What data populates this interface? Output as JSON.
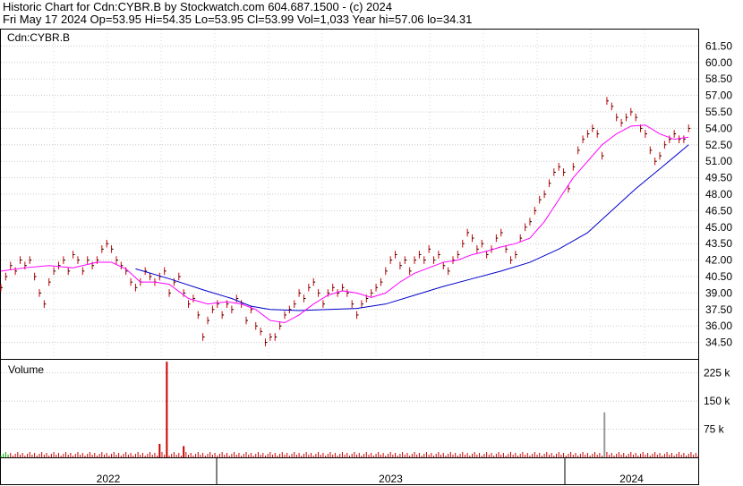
{
  "header": {
    "line1": "Historic Chart for Cdn:CYBR.B by Stockwatch.com 604.687.1500 - (c) 2024",
    "line2": "Fri May 17 2024   Op=53.95   Hi=54.35   Lo=53.95   Cl=53.99   Vol=1,033   Year hi=57.06   lo=34.31"
  },
  "colors": {
    "ma_short": "#ff00ff",
    "ma_long": "#0000cc",
    "price_ticks": "#cc0000",
    "volume_bar": "#cc0000",
    "volume_grey": "#999999",
    "volume_green": "#00aa00"
  },
  "chart_data": [
    {
      "type": "line",
      "subtitle": "Cdn:CYBR.B",
      "y_axis_position": "right",
      "ylim": [
        33.0,
        63.0
      ],
      "yticks": [
        "61.50",
        "60.00",
        "58.50",
        "57.00",
        "55.50",
        "54.00",
        "52.50",
        "51.00",
        "49.50",
        "48.00",
        "46.50",
        "45.00",
        "43.50",
        "42.00",
        "40.50",
        "39.00",
        "37.50",
        "36.00",
        "34.50"
      ],
      "grid": true,
      "x_sections": [
        "2022",
        "2023",
        "2024"
      ],
      "price_points": [
        [
          0,
          39.5
        ],
        [
          2,
          40.5
        ],
        [
          4,
          41.5
        ],
        [
          6,
          41
        ],
        [
          8,
          42
        ],
        [
          10,
          41.5
        ],
        [
          12,
          42
        ],
        [
          14,
          40.5
        ],
        [
          16,
          39
        ],
        [
          18,
          38
        ],
        [
          20,
          40
        ],
        [
          22,
          41
        ],
        [
          24,
          41.5
        ],
        [
          26,
          42
        ],
        [
          28,
          41
        ],
        [
          30,
          42.5
        ],
        [
          32,
          42
        ],
        [
          34,
          41
        ],
        [
          36,
          42
        ],
        [
          38,
          41.5
        ],
        [
          40,
          42
        ],
        [
          42,
          43
        ],
        [
          44,
          43.5
        ],
        [
          46,
          43
        ],
        [
          48,
          42
        ],
        [
          50,
          41.5
        ],
        [
          52,
          41
        ],
        [
          54,
          40
        ],
        [
          56,
          39.5
        ],
        [
          58,
          40
        ],
        [
          60,
          41
        ],
        [
          62,
          40.5
        ],
        [
          64,
          40
        ],
        [
          66,
          40.5
        ],
        [
          68,
          41
        ],
        [
          70,
          39
        ],
        [
          72,
          40
        ],
        [
          74,
          40.5
        ],
        [
          76,
          39
        ],
        [
          78,
          38
        ],
        [
          80,
          38.5
        ],
        [
          82,
          37
        ],
        [
          84,
          35
        ],
        [
          86,
          36.5
        ],
        [
          88,
          37.5
        ],
        [
          90,
          38
        ],
        [
          92,
          37
        ],
        [
          94,
          38
        ],
        [
          96,
          37.5
        ],
        [
          98,
          38.5
        ],
        [
          100,
          38
        ],
        [
          102,
          36.5
        ],
        [
          104,
          37.5
        ],
        [
          106,
          36
        ],
        [
          108,
          35.5
        ],
        [
          110,
          34.5
        ],
        [
          112,
          35
        ],
        [
          114,
          35
        ],
        [
          116,
          36
        ],
        [
          118,
          37
        ],
        [
          120,
          37.5
        ],
        [
          122,
          38
        ],
        [
          124,
          39
        ],
        [
          126,
          38.5
        ],
        [
          128,
          39.5
        ],
        [
          130,
          40
        ],
        [
          132,
          39
        ],
        [
          134,
          38
        ],
        [
          136,
          39
        ],
        [
          138,
          39.5
        ],
        [
          140,
          39
        ],
        [
          142,
          39.5
        ],
        [
          144,
          39
        ],
        [
          146,
          38
        ],
        [
          148,
          37
        ],
        [
          150,
          38
        ],
        [
          152,
          38.5
        ],
        [
          154,
          39
        ],
        [
          156,
          39.5
        ],
        [
          158,
          40
        ],
        [
          160,
          41
        ],
        [
          162,
          42
        ],
        [
          164,
          42.5
        ],
        [
          166,
          41.5
        ],
        [
          168,
          42
        ],
        [
          170,
          41
        ],
        [
          172,
          42
        ],
        [
          174,
          42.5
        ],
        [
          176,
          42
        ],
        [
          178,
          43
        ],
        [
          180,
          42
        ],
        [
          182,
          42.5
        ],
        [
          184,
          41.5
        ],
        [
          186,
          41
        ],
        [
          188,
          42
        ],
        [
          190,
          42.5
        ],
        [
          192,
          43.5
        ],
        [
          194,
          44.5
        ],
        [
          196,
          44
        ],
        [
          198,
          43
        ],
        [
          200,
          43.5
        ],
        [
          202,
          42.5
        ],
        [
          204,
          43
        ],
        [
          206,
          44
        ],
        [
          208,
          44.5
        ],
        [
          210,
          43
        ],
        [
          212,
          42
        ],
        [
          214,
          42.5
        ],
        [
          216,
          44
        ],
        [
          218,
          45
        ],
        [
          220,
          45.5
        ],
        [
          222,
          46.5
        ],
        [
          224,
          47.5
        ],
        [
          226,
          48
        ],
        [
          228,
          49
        ],
        [
          230,
          50
        ],
        [
          232,
          50.5
        ],
        [
          234,
          50
        ],
        [
          236,
          48.5
        ],
        [
          238,
          50.5
        ],
        [
          240,
          52
        ],
        [
          242,
          53
        ],
        [
          244,
          53.5
        ],
        [
          246,
          54
        ],
        [
          248,
          53.5
        ],
        [
          250,
          51.5
        ],
        [
          252,
          56.5
        ],
        [
          254,
          56
        ],
        [
          256,
          55
        ],
        [
          258,
          54.5
        ],
        [
          260,
          55
        ],
        [
          262,
          55.5
        ],
        [
          264,
          55
        ],
        [
          266,
          54
        ],
        [
          268,
          53.5
        ],
        [
          270,
          52
        ],
        [
          272,
          51
        ],
        [
          274,
          51.5
        ],
        [
          276,
          52.5
        ],
        [
          278,
          53
        ],
        [
          280,
          53.5
        ],
        [
          282,
          53
        ],
        [
          284,
          53
        ],
        [
          286,
          54
        ]
      ],
      "ma_short": [
        [
          0,
          41
        ],
        [
          10,
          41.3
        ],
        [
          20,
          41.5
        ],
        [
          30,
          41.3
        ],
        [
          40,
          41.8
        ],
        [
          46,
          41.8
        ],
        [
          52,
          41.2
        ],
        [
          58,
          40
        ],
        [
          64,
          40
        ],
        [
          70,
          39.8
        ],
        [
          78,
          38.5
        ],
        [
          86,
          38
        ],
        [
          94,
          38.2
        ],
        [
          100,
          38
        ],
        [
          106,
          37.5
        ],
        [
          112,
          36.5
        ],
        [
          118,
          36.3
        ],
        [
          124,
          37
        ],
        [
          130,
          38
        ],
        [
          136,
          38.8
        ],
        [
          142,
          39.2
        ],
        [
          148,
          39
        ],
        [
          154,
          38.6
        ],
        [
          160,
          39
        ],
        [
          166,
          40
        ],
        [
          172,
          40.8
        ],
        [
          178,
          41.3
        ],
        [
          184,
          41.8
        ],
        [
          190,
          42
        ],
        [
          196,
          42.5
        ],
        [
          202,
          42.8
        ],
        [
          208,
          43.2
        ],
        [
          214,
          43.5
        ],
        [
          220,
          44
        ],
        [
          226,
          45.5
        ],
        [
          232,
          47.5
        ],
        [
          238,
          49.5
        ],
        [
          244,
          51
        ],
        [
          250,
          52.5
        ],
        [
          256,
          53.5
        ],
        [
          262,
          54.2
        ],
        [
          268,
          54.3
        ],
        [
          274,
          53.5
        ],
        [
          280,
          53
        ],
        [
          286,
          53.2
        ]
      ],
      "ma_long": [
        [
          56,
          41.2
        ],
        [
          70,
          40.3
        ],
        [
          84,
          39.3
        ],
        [
          96,
          38.5
        ],
        [
          104,
          37.8
        ],
        [
          112,
          37.5
        ],
        [
          124,
          37.4
        ],
        [
          136,
          37.5
        ],
        [
          148,
          37.6
        ],
        [
          160,
          38
        ],
        [
          172,
          38.8
        ],
        [
          184,
          39.6
        ],
        [
          196,
          40.3
        ],
        [
          208,
          41
        ],
        [
          220,
          41.8
        ],
        [
          232,
          43
        ],
        [
          244,
          44.5
        ],
        [
          254,
          46.5
        ],
        [
          264,
          48.5
        ],
        [
          274,
          50.3
        ],
        [
          286,
          52.5
        ]
      ]
    },
    {
      "type": "bar",
      "title": "Volume",
      "y_axis_position": "right",
      "ylim": [
        0,
        260
      ],
      "yticks": [
        "225 k",
        "150 k",
        "75 k"
      ],
      "spikes": [
        {
          "x": 69,
          "value": 255,
          "color": "volume_bar"
        },
        {
          "x": 66,
          "value": 36,
          "color": "volume_bar"
        },
        {
          "x": 76,
          "value": 30,
          "color": "volume_bar"
        },
        {
          "x": 251,
          "value": 120,
          "color": "volume_grey"
        }
      ]
    }
  ]
}
